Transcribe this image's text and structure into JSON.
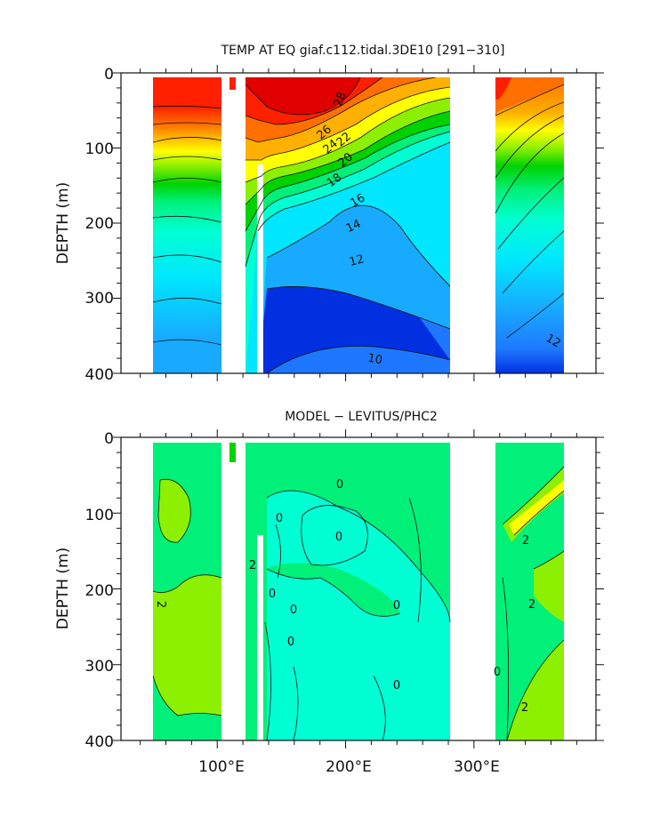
{
  "chart_data": [
    {
      "type": "heatmap",
      "title": "TEMP AT EQ giaf.c112.tidal.3DE10 [291−310]",
      "ylabel": "DEPTH (m)",
      "xlabel": "",
      "y_ticks": [
        "0",
        "100",
        "200",
        "300",
        "400"
      ],
      "ylim": [
        400,
        0
      ],
      "xlim": [
        25,
        395
      ],
      "contour_labels": [
        "28",
        "26",
        "24",
        "22",
        "20",
        "18",
        "16",
        "14",
        "12",
        "12",
        "10"
      ],
      "colormap": [
        "#0030e0",
        "#1e78ff",
        "#18aaff",
        "#00e6ff",
        "#00ffd2",
        "#00f07a",
        "#00d200",
        "#8cf000",
        "#ffff00",
        "#ffb000",
        "#ff7000",
        "#ff2000",
        "#e00000"
      ],
      "land_gaps_lon": [
        [
          97,
          118
        ],
        [
          278,
          314
        ]
      ]
    },
    {
      "type": "heatmap",
      "title": "MODEL − LEVITUS/PHC2",
      "ylabel": "DEPTH (m)",
      "xlabel": "",
      "y_ticks": [
        "0",
        "100",
        "200",
        "300",
        "400"
      ],
      "x_ticks": [
        "100°E",
        "200°E",
        "300°E"
      ],
      "ylim": [
        400,
        0
      ],
      "xlim": [
        25,
        395
      ],
      "contour_labels": [
        "0",
        "0",
        "0",
        "0",
        "0",
        "0",
        "0",
        "0",
        "2",
        "2",
        "2",
        "2",
        "0",
        "2"
      ],
      "colormap": [
        "#00ffd2",
        "#00f07a",
        "#8cf000",
        "#ffff00"
      ],
      "land_gaps_lon": [
        [
          97,
          118
        ],
        [
          278,
          314
        ]
      ]
    }
  ]
}
